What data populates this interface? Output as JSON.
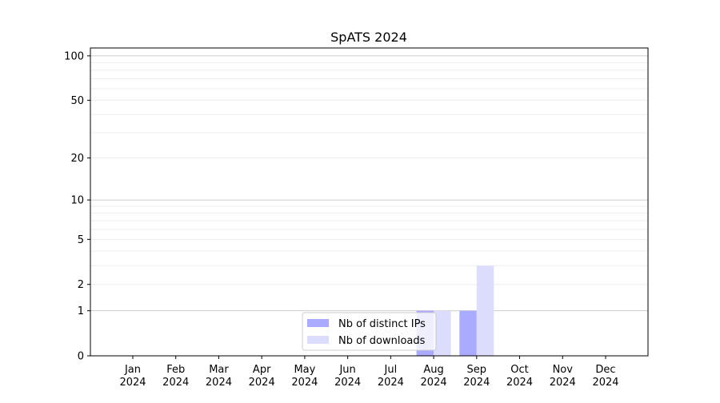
{
  "chart_data": {
    "type": "bar",
    "title": "SpATS 2024",
    "xlabel": "",
    "ylabel": "",
    "y_scale": "log10(1+y)",
    "ylim": [
      0,
      113
    ],
    "yticks": [
      0,
      1,
      2,
      5,
      10,
      20,
      50,
      100
    ],
    "grid": true,
    "categories": [
      "Jan\n2024",
      "Feb\n2024",
      "Mar\n2024",
      "Apr\n2024",
      "May\n2024",
      "Jun\n2024",
      "Jul\n2024",
      "Aug\n2024",
      "Sep\n2024",
      "Oct\n2024",
      "Nov\n2024",
      "Dec\n2024"
    ],
    "series": [
      {
        "name": "Nb of distinct IPs",
        "color": "#aaaaff",
        "values": [
          0,
          0,
          0,
          0,
          0,
          0,
          0,
          1,
          1,
          0,
          0,
          0
        ]
      },
      {
        "name": "Nb of downloads",
        "color": "#dcdcfc",
        "values": [
          0,
          0,
          0,
          0,
          0,
          0,
          0,
          1,
          3,
          0,
          0,
          0
        ]
      }
    ],
    "legend_position": "bottom-center"
  }
}
